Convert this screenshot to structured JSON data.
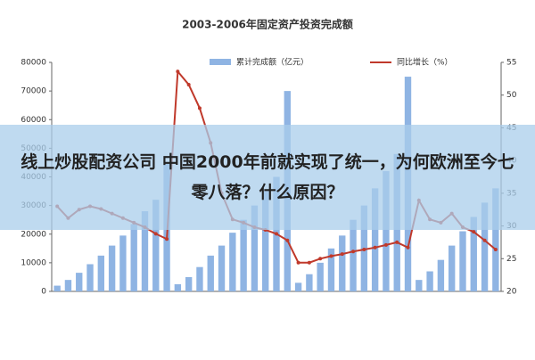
{
  "chart_data": {
    "type": "bar_line",
    "title": "2003-2006年固定资产投资完成额",
    "categories": [
      null,
      null,
      null,
      null,
      null,
      null,
      null,
      null,
      null,
      null,
      null,
      null,
      null,
      null,
      null,
      null,
      null,
      null,
      null,
      null,
      null,
      null,
      null,
      null,
      null,
      null,
      null,
      null,
      null,
      null,
      null,
      null,
      null,
      null,
      null,
      null,
      null,
      null,
      null,
      null,
      null
    ],
    "series": [
      {
        "name": "累计完成额（亿元）",
        "color": "#8fb4e3",
        "kind": "bar",
        "values": [
          2000,
          4000,
          6500,
          9500,
          12500,
          16000,
          19500,
          23500,
          28000,
          32000,
          45000,
          2500,
          5000,
          8500,
          12500,
          16000,
          20500,
          25000,
          30000,
          35000,
          40000,
          70000,
          3000,
          6000,
          10000,
          15000,
          19500,
          25000,
          30000,
          36000,
          42000,
          48000,
          75000,
          4000,
          7000,
          11000,
          16000,
          21000,
          26000,
          31000,
          36000
        ]
      },
      {
        "name": "同比增长（%）",
        "color": "#c0392b",
        "kind": "line",
        "axis": "y2",
        "values": [
          33,
          31.2,
          32.5,
          33,
          32.6,
          31.9,
          31.2,
          30.5,
          29.8,
          28.8,
          28,
          53.6,
          51.6,
          48,
          42.7,
          35,
          31,
          30.5,
          29.8,
          29.4,
          28.8,
          27.8,
          24.4,
          24.4,
          25,
          25.4,
          25.7,
          26.1,
          26.4,
          26.7,
          27.1,
          27.5,
          26.7,
          33.9,
          31,
          30.5,
          31.9,
          29.8,
          29.1,
          27.8,
          26.4
        ]
      }
    ],
    "ylim": [
      0,
      80000
    ],
    "yticks": [
      0,
      10000,
      20000,
      30000,
      40000,
      50000,
      60000,
      70000,
      80000
    ],
    "y2lim": [
      20,
      55
    ],
    "y2ticks": [
      20,
      25,
      30,
      35,
      40,
      45,
      50,
      55
    ],
    "overlay_text": "线上炒股配资公司 中国2000年前就实现了统一，为何欧洲至今七零八落？什么原因？"
  }
}
